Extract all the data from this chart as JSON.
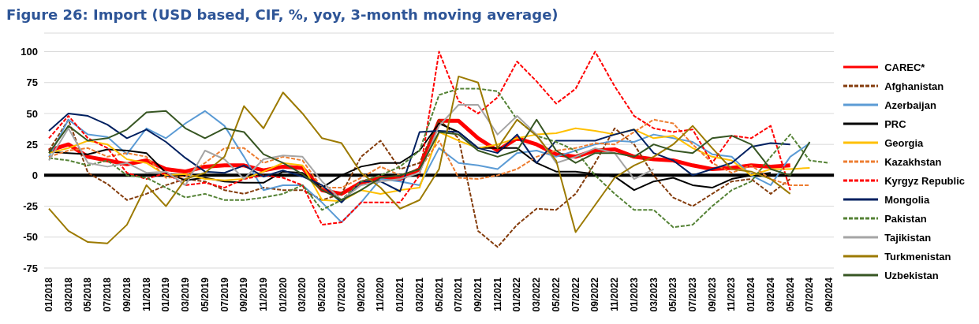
{
  "chart_data": {
    "type": "line",
    "title": "Figure 26: Import (USD based, CIF, %, yoy, 3-month moving average)",
    "categories": [
      "01/2018",
      "03/2018",
      "05/2018",
      "07/2018",
      "09/2018",
      "11/2018",
      "01/2019",
      "03/2019",
      "05/2019",
      "07/2019",
      "09/2019",
      "11/2019",
      "01/2020",
      "03/2020",
      "05/2020",
      "07/2020",
      "09/2020",
      "11/2020",
      "01/2021",
      "03/2021",
      "05/2021",
      "07/2021",
      "09/2021",
      "11/2021",
      "01/2022",
      "03/2022",
      "05/2022",
      "07/2022",
      "09/2022",
      "11/2022",
      "01/2023",
      "03/2023",
      "05/2023",
      "07/2023",
      "09/2023",
      "11/2023",
      "01/2024",
      "03/2024",
      "05/2024",
      "07/2024",
      "09/2024"
    ],
    "ylim": [
      -75,
      115
    ],
    "yticks": [
      -75,
      -50,
      -25,
      0,
      25,
      50,
      75,
      100
    ],
    "grid": "y",
    "legend": "right",
    "marker": "none",
    "ref_lines": [
      {
        "axis": "y",
        "value": 0,
        "color": "#000000"
      }
    ],
    "series": [
      {
        "name": "CAREC*",
        "color": "#ff0000",
        "line_style": "solid",
        "values": [
          20,
          25,
          15,
          12,
          9,
          12,
          5,
          3,
          7,
          8,
          8,
          4,
          7,
          6,
          -12,
          -15,
          -6,
          -2,
          -3,
          5,
          44,
          44,
          30,
          20,
          30,
          25,
          17,
          15,
          20,
          21,
          15,
          13,
          12,
          8,
          5,
          6,
          8,
          7,
          8,
          null,
          null
        ]
      },
      {
        "name": "Afghanistan",
        "color": "#843c0c",
        "line_style": "dashed",
        "values": [
          20,
          45,
          2,
          -7,
          -20,
          -15,
          -8,
          -3,
          -5,
          -12,
          -15,
          -10,
          -12,
          -12,
          -20,
          -15,
          15,
          28,
          5,
          10,
          45,
          30,
          -45,
          -58,
          -40,
          -27,
          -28,
          -15,
          10,
          38,
          25,
          0,
          -18,
          -25,
          -15,
          -5,
          -3,
          -15,
          -3,
          null,
          null
        ]
      },
      {
        "name": "Azerbaijan",
        "color": "#5b9bd5",
        "line_style": "solid",
        "values": [
          15,
          45,
          33,
          31,
          17,
          38,
          30,
          42,
          52,
          40,
          15,
          -12,
          -8,
          -8,
          -22,
          -38,
          -22,
          -3,
          -5,
          -8,
          22,
          10,
          8,
          5,
          18,
          20,
          15,
          20,
          25,
          28,
          27,
          33,
          30,
          27,
          17,
          15,
          0,
          -8,
          15,
          26,
          null
        ]
      },
      {
        "name": "PRC",
        "color": "#000000",
        "line_style": "solid",
        "values": [
          19,
          18,
          17,
          21,
          20,
          18,
          2,
          -4,
          -2,
          -5,
          -6,
          -6,
          3,
          2,
          -10,
          0,
          7,
          10,
          10,
          20,
          42,
          35,
          22,
          22,
          22,
          10,
          3,
          3,
          1,
          -1,
          -12,
          -5,
          -2,
          -8,
          -10,
          -3,
          0,
          2,
          null,
          null,
          null
        ]
      },
      {
        "name": "Georgia",
        "color": "#ffc000",
        "line_style": "solid",
        "values": [
          18,
          22,
          28,
          25,
          13,
          10,
          0,
          1,
          -3,
          -4,
          -3,
          3,
          10,
          8,
          -20,
          -21,
          -12,
          -15,
          -12,
          -10,
          35,
          28,
          22,
          25,
          30,
          33,
          34,
          38,
          36,
          33,
          37,
          30,
          32,
          22,
          15,
          12,
          0,
          5,
          5,
          6,
          null
        ]
      },
      {
        "name": "Kazakhstan",
        "color": "#ed7d31",
        "line_style": "dashed",
        "values": [
          15,
          20,
          22,
          15,
          18,
          15,
          -2,
          -1,
          10,
          22,
          22,
          10,
          15,
          12,
          -10,
          -10,
          -2,
          7,
          0,
          5,
          28,
          -2,
          -3,
          0,
          5,
          15,
          20,
          22,
          26,
          25,
          35,
          45,
          42,
          25,
          10,
          2,
          8,
          -3,
          -8,
          -8,
          null
        ]
      },
      {
        "name": "Kyrgyz Republic",
        "color": "#ff0000",
        "line_style": "dashed",
        "values": [
          30,
          48,
          30,
          22,
          2,
          -3,
          2,
          -8,
          -6,
          -10,
          -3,
          0,
          -2,
          -8,
          -40,
          -38,
          -22,
          -22,
          -22,
          0,
          100,
          60,
          50,
          63,
          92,
          76,
          58,
          70,
          100,
          72,
          48,
          38,
          35,
          37,
          10,
          32,
          30,
          40,
          -12,
          null,
          null
        ]
      },
      {
        "name": "Mongolia",
        "color": "#002060",
        "line_style": "solid",
        "values": [
          36,
          50,
          48,
          41,
          30,
          37,
          27,
          14,
          3,
          2,
          8,
          -1,
          4,
          -1,
          -8,
          -22,
          -5,
          -5,
          -13,
          35,
          36,
          35,
          22,
          18,
          33,
          10,
          28,
          28,
          28,
          33,
          37,
          18,
          12,
          0,
          5,
          10,
          23,
          26,
          25,
          null,
          null
        ]
      },
      {
        "name": "Pakistan",
        "color": "#548235",
        "line_style": "dashed",
        "values": [
          14,
          12,
          8,
          12,
          0,
          -2,
          -10,
          -18,
          -15,
          -20,
          -20,
          -18,
          -15,
          -8,
          -28,
          -20,
          -5,
          0,
          7,
          20,
          65,
          70,
          70,
          68,
          45,
          32,
          27,
          20,
          0,
          -15,
          -28,
          -28,
          -42,
          -40,
          -25,
          -12,
          -5,
          15,
          33,
          12,
          10
        ]
      },
      {
        "name": "Tajikistan",
        "color": "#a5a5a5",
        "line_style": "solid",
        "values": [
          12,
          38,
          10,
          7,
          10,
          2,
          3,
          -8,
          20,
          13,
          -3,
          13,
          16,
          15,
          -5,
          -20,
          -8,
          -5,
          -3,
          2,
          40,
          57,
          57,
          33,
          48,
          33,
          10,
          15,
          22,
          18,
          -3,
          5,
          null,
          null,
          null,
          null,
          null,
          null,
          null,
          null,
          null
        ]
      },
      {
        "name": "Turkmenistan",
        "color": "#9c7a00",
        "line_style": "solid",
        "values": [
          -27,
          -45,
          -54,
          -55,
          -40,
          -8,
          -25,
          -3,
          2,
          15,
          56,
          38,
          67,
          50,
          30,
          26,
          2,
          -10,
          -27,
          -20,
          5,
          80,
          75,
          22,
          45,
          32,
          12,
          -46,
          -24,
          -2,
          8,
          15,
          25,
          40,
          22,
          5,
          3,
          -3,
          -15,
          null,
          null
        ]
      },
      {
        "name": "Uzbekistan",
        "color": "#375623",
        "line_style": "solid",
        "values": [
          18,
          40,
          28,
          30,
          37,
          51,
          52,
          38,
          30,
          38,
          35,
          17,
          10,
          1,
          -12,
          -20,
          -12,
          -2,
          0,
          5,
          35,
          33,
          20,
          15,
          20,
          45,
          20,
          10,
          18,
          18,
          15,
          25,
          20,
          18,
          30,
          32,
          25,
          5,
          0,
          27,
          null
        ]
      }
    ]
  }
}
